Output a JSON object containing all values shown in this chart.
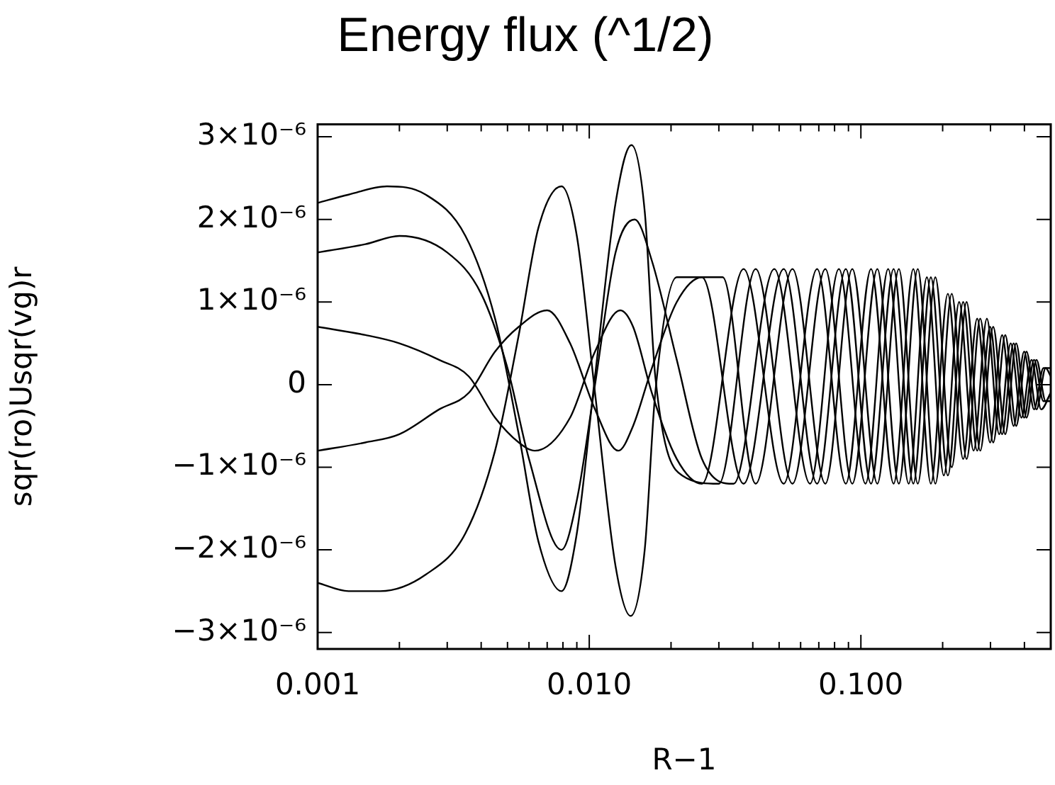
{
  "chart_data": {
    "type": "line",
    "title": "Energy flux (^1/2)",
    "xlabel": "R−1",
    "ylabel": "sqr(ro)Usqr(vg)r",
    "log": "x",
    "grid": false,
    "legend": false,
    "marker": "none",
    "line_style": "solid",
    "xlim": [
      0.001,
      0.5
    ],
    "ylim": [
      -3.2e-06,
      3.15e-06
    ],
    "xticks": [
      {
        "value": 0.001,
        "label": "0.001"
      },
      {
        "value": 0.002,
        "label": null
      },
      {
        "value": 0.003,
        "label": null
      },
      {
        "value": 0.004,
        "label": null
      },
      {
        "value": 0.005,
        "label": null
      },
      {
        "value": 0.006,
        "label": null
      },
      {
        "value": 0.007,
        "label": null
      },
      {
        "value": 0.008,
        "label": null
      },
      {
        "value": 0.009,
        "label": null
      },
      {
        "value": 0.01,
        "label": "0.010"
      },
      {
        "value": 0.02,
        "label": null
      },
      {
        "value": 0.03,
        "label": null
      },
      {
        "value": 0.04,
        "label": null
      },
      {
        "value": 0.05,
        "label": null
      },
      {
        "value": 0.06,
        "label": null
      },
      {
        "value": 0.07,
        "label": null
      },
      {
        "value": 0.08,
        "label": null
      },
      {
        "value": 0.09,
        "label": null
      },
      {
        "value": 0.1,
        "label": "0.100"
      },
      {
        "value": 0.2,
        "label": null
      },
      {
        "value": 0.3,
        "label": null
      },
      {
        "value": 0.4,
        "label": null
      }
    ],
    "yticks": [
      {
        "value": -3e-06,
        "label": "−3×10⁻⁶"
      },
      {
        "value": -2e-06,
        "label": "−2×10⁻⁶"
      },
      {
        "value": -1e-06,
        "label": "−1×10⁻⁶"
      },
      {
        "value": 0,
        "label": "0"
      },
      {
        "value": 1e-06,
        "label": "1×10⁻⁶"
      },
      {
        "value": 2e-06,
        "label": "2×10⁻⁶"
      },
      {
        "value": 3e-06,
        "label": "3×10⁻⁶"
      }
    ],
    "series": [
      {
        "color": "#000000",
        "x": [
          0.001,
          0.0013,
          0.0018,
          0.0025,
          0.0035,
          0.0045,
          0.0055,
          0.0065,
          0.0079,
          0.009,
          0.0105,
          0.0125,
          0.0143,
          0.016,
          0.0175,
          0.022,
          0.03,
          0.041,
          0.056,
          0.074,
          0.093,
          0.115,
          0.138,
          0.162,
          0.188,
          0.216,
          0.245,
          0.275,
          0.307,
          0.34,
          0.373,
          0.407,
          0.443,
          0.479,
          0.5
        ],
        "values": [
          2.2e-06,
          2.3e-06,
          2.4e-06,
          2.3e-06,
          1.8e-06,
          8e-07,
          -6e-07,
          -1.9e-06,
          -2.5e-06,
          -1.8e-06,
          1e-07,
          2.2e-06,
          2.9e-06,
          2.1e-06,
          1e-07,
          -1.1e-06,
          -1.2e-06,
          1.4e-06,
          -1.2e-06,
          1.4e-06,
          -1.2e-06,
          1.4e-06,
          -1.2e-06,
          1.4e-06,
          -1.2e-06,
          1.1e-06,
          -9e-07,
          8e-07,
          -7e-07,
          6e-07,
          -5e-07,
          4e-07,
          -3e-07,
          2e-07,
          1e-07
        ]
      },
      {
        "color": "#000000",
        "x": [
          0.001,
          0.0015,
          0.002,
          0.003,
          0.004,
          0.005,
          0.006,
          0.0079,
          0.009,
          0.0105,
          0.0125,
          0.0147,
          0.017,
          0.021,
          0.026,
          0.034,
          0.048,
          0.065,
          0.083,
          0.104,
          0.126,
          0.15,
          0.175,
          0.202,
          0.23,
          0.26,
          0.291,
          0.323,
          0.356,
          0.39,
          0.425,
          0.461,
          0.5
        ],
        "values": [
          1.6e-06,
          1.7e-06,
          1.8e-06,
          1.6e-06,
          1.1e-06,
          2e-07,
          -9e-07,
          -2e-06,
          -1.4e-06,
          0,
          1.6e-06,
          2e-06,
          1.5e-06,
          3e-07,
          -9e-07,
          -1.2e-06,
          1.4e-06,
          -1.2e-06,
          1.4e-06,
          -1.2e-06,
          1.4e-06,
          -1.2e-06,
          1.3e-06,
          -1.1e-06,
          1e-06,
          -8e-07,
          8e-07,
          -6e-07,
          5e-07,
          -4e-07,
          3e-07,
          -3e-07,
          -1e-07
        ]
      },
      {
        "color": "#000000",
        "x": [
          0.001,
          0.0015,
          0.002,
          0.0028,
          0.0036,
          0.0045,
          0.0055,
          0.0063,
          0.0085,
          0.0105,
          0.013,
          0.0145,
          0.017,
          0.021,
          0.026,
          0.037,
          0.052,
          0.069,
          0.088,
          0.109,
          0.132,
          0.156,
          0.181,
          0.209,
          0.238,
          0.268,
          0.299,
          0.331,
          0.365,
          0.399,
          0.434,
          0.47,
          0.5
        ],
        "values": [
          7e-07,
          6e-07,
          5e-07,
          3e-07,
          1e-07,
          -4e-07,
          -7e-07,
          -8e-07,
          -4e-07,
          4e-07,
          9e-07,
          7e-07,
          -1e-07,
          -9e-07,
          -1.2e-06,
          1.4e-06,
          -1.2e-06,
          1.4e-06,
          -1.2e-06,
          1.4e-06,
          -1.2e-06,
          1.4e-06,
          -1.2e-06,
          1.1e-06,
          -9e-07,
          8e-07,
          -7e-07,
          6e-07,
          -5e-07,
          4e-07,
          -3e-07,
          2e-07,
          2e-07
        ]
      },
      {
        "color": "#000000",
        "x": [
          0.001,
          0.0015,
          0.002,
          0.0028,
          0.0036,
          0.0045,
          0.0055,
          0.007,
          0.0085,
          0.0105,
          0.0128,
          0.0145,
          0.017,
          0.021,
          0.026,
          0.037,
          0.052,
          0.069,
          0.088,
          0.109,
          0.132,
          0.156,
          0.181,
          0.209,
          0.238,
          0.268,
          0.299,
          0.331,
          0.365,
          0.399,
          0.434,
          0.47,
          0.5
        ],
        "values": [
          -8e-07,
          -7e-07,
          -6e-07,
          -3e-07,
          -1e-07,
          4e-07,
          7e-07,
          9e-07,
          5e-07,
          -3e-07,
          -8e-07,
          -5e-07,
          2e-07,
          1e-06,
          1.3e-06,
          -1.2e-06,
          1.4e-06,
          -1.2e-06,
          1.4e-06,
          -1.2e-06,
          1.4e-06,
          -1.2e-06,
          1.3e-06,
          -1.1e-06,
          1e-06,
          -8e-07,
          7e-07,
          -6e-07,
          5e-07,
          -4e-07,
          3e-07,
          -2e-07,
          -2e-07
        ]
      },
      {
        "color": "#000000",
        "x": [
          0.001,
          0.0013,
          0.0017,
          0.0025,
          0.0035,
          0.0045,
          0.0055,
          0.0065,
          0.0079,
          0.009,
          0.0105,
          0.0125,
          0.0142,
          0.016,
          0.0175,
          0.021,
          0.026,
          0.031,
          0.041,
          0.056,
          0.074,
          0.093,
          0.115,
          0.138,
          0.162,
          0.188,
          0.216,
          0.245,
          0.275,
          0.307,
          0.34,
          0.373,
          0.407,
          0.443,
          0.479,
          0.5
        ],
        "values": [
          -2.4e-06,
          -2.5e-06,
          -2.5e-06,
          -2.3e-06,
          -1.8e-06,
          -8e-07,
          6e-07,
          1.9e-06,
          2.4e-06,
          1.8e-06,
          -1e-07,
          -2.2e-06,
          -2.8e-06,
          -2e-06,
          -1e-07,
          1.3e-06,
          1.3e-06,
          1.3e-06,
          -1.2e-06,
          1.4e-06,
          -1.2e-06,
          1.4e-06,
          -1.2e-06,
          1.4e-06,
          -1.2e-06,
          1.3e-06,
          -1e-06,
          1e-06,
          -8e-07,
          7e-07,
          -6e-07,
          5e-07,
          -4e-07,
          3e-07,
          -2e-07,
          -1e-07
        ]
      }
    ]
  }
}
